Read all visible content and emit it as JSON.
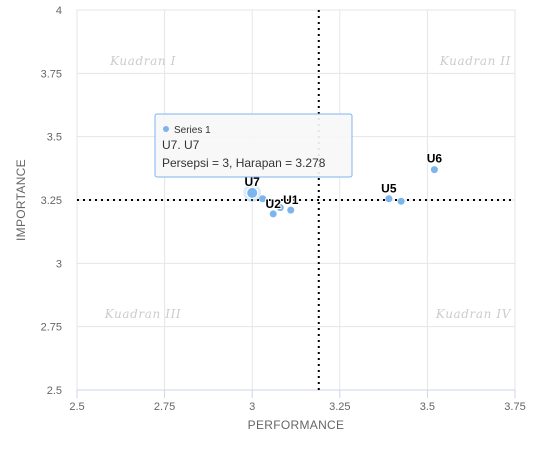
{
  "chart_data": {
    "type": "scatter",
    "xlabel": "PERFORMANCE",
    "ylabel": "IMPORTANCE",
    "xlim": [
      2.5,
      3.75
    ],
    "ylim": [
      2.5,
      4
    ],
    "xticks": [
      "2.5",
      "2.75",
      "3",
      "3.25",
      "3.5",
      "3.75"
    ],
    "yticks": [
      "2.5",
      "2.75",
      "3",
      "3.25",
      "3.5",
      "3.75",
      "4"
    ],
    "x_divider": 3.19,
    "y_divider": 3.25,
    "quadrants": [
      "Kuadran I",
      "Kuadran II",
      "Kuadran III",
      "Kuadran IV"
    ],
    "point_color": "#7cb5ec",
    "series": [
      {
        "name": "Series 1",
        "points": [
          {
            "label": "U1",
            "x": 3.11,
            "y": 3.21
          },
          {
            "label": "U2",
            "x": 3.06,
            "y": 3.195
          },
          {
            "label": "",
            "x": 3.08,
            "y": 3.22
          },
          {
            "label": "",
            "x": 3.03,
            "y": 3.255
          },
          {
            "label": "U5",
            "x": 3.39,
            "y": 3.255
          },
          {
            "label": "",
            "x": 3.425,
            "y": 3.245
          },
          {
            "label": "U6",
            "x": 3.52,
            "y": 3.37
          },
          {
            "label": "U7",
            "x": 3.0,
            "y": 3.278
          }
        ]
      }
    ],
    "tooltip": {
      "series_name": "Series 1",
      "title": "U7. U7",
      "body": "Persepsi = 3, Harapan = 3.278"
    }
  }
}
